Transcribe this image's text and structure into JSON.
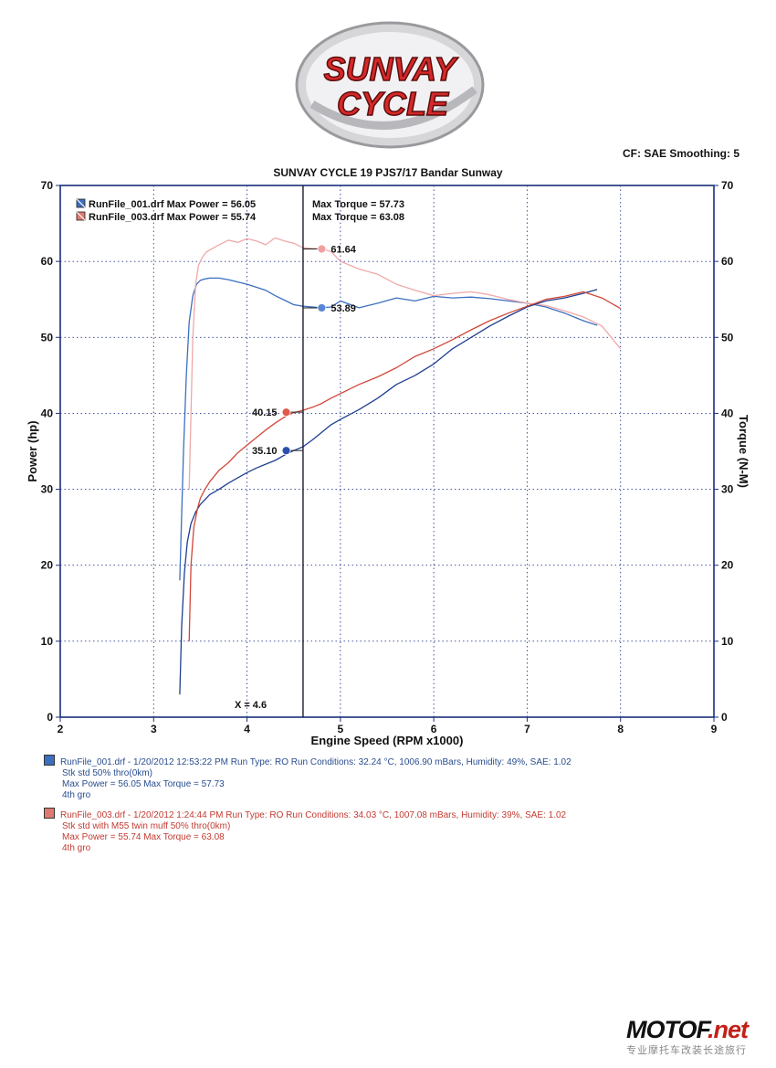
{
  "header": {
    "logo_line1": "SUNVAY",
    "logo_line2": "CYCLE",
    "cf_text": "CF: SAE  Smoothing: 5",
    "title": "SUNVAY CYCLE 19 PJS7/17 Bandar Sunway"
  },
  "legend": {
    "row1_left": "RunFile_001.drf Max Power = 56.05",
    "row1_right": "Max Torque = 57.73",
    "row2_left": "RunFile_003.drf Max Power = 55.74",
    "row2_right": "Max Torque = 63.08"
  },
  "cursor": {
    "label": "X = 4.6",
    "x": 4.6
  },
  "markers": [
    {
      "label": "61.64",
      "x": 4.8,
      "y": 61.64,
      "color": "#f0a0a0"
    },
    {
      "label": "53.89",
      "x": 4.8,
      "y": 53.89,
      "color": "#5a86d6"
    },
    {
      "label": "40.15",
      "x": 4.42,
      "y": 40.15,
      "color": "#e05a4a"
    },
    {
      "label": "35.10",
      "x": 4.42,
      "y": 35.1,
      "color": "#2a4fae"
    }
  ],
  "run_info": [
    {
      "line1": "RunFile_001.drf - 1/20/2012 12:53:22 PM  Run Type: RO  Run Conditions: 32.24 °C, 1006.90 mBars,  Humidity:  49%, SAE: 1.02",
      "line2": "Stk std 50% thro(0km)",
      "line3": "Max Power = 56.05  Max Torque = 57.73",
      "line4": "4th gro"
    },
    {
      "line1": "RunFile_003.drf - 1/20/2012 1:24:44 PM  Run Type: RO  Run Conditions: 34.03 °C, 1007.08 mBars,  Humidity:  39%, SAE: 1.02",
      "line2": "Stk std with M55 twin muff 50% thro(0km)",
      "line3": "Max Power = 55.74  Max Torque = 63.08",
      "line4": "4th gro"
    }
  ],
  "watermark": {
    "brand_main": "MOTOF",
    "brand_suffix": ".net",
    "tagline": "专业摩托车改装长途旅行"
  },
  "chart_data": {
    "type": "line",
    "xlabel": "Engine Speed (RPM x1000)",
    "ylabel": "Power (hp)",
    "y2label": "Torque (N-M)",
    "xlim": [
      2,
      9
    ],
    "ylim": [
      0,
      70
    ],
    "y2lim": [
      0,
      70
    ],
    "x_ticks": [
      2,
      3,
      4,
      5,
      6,
      7,
      8,
      9
    ],
    "y_ticks": [
      0,
      10,
      20,
      30,
      40,
      50,
      60,
      70
    ],
    "grid": true,
    "series": [
      {
        "name": "RunFile_001.drf",
        "quantity": "Power",
        "color": "#3c6fc0",
        "x": [
          3.28,
          3.32,
          3.35,
          3.38,
          3.42,
          3.46,
          3.5,
          3.55,
          3.6,
          3.7,
          3.8,
          3.9,
          4.0,
          4.1,
          4.2,
          4.3,
          4.4,
          4.5,
          4.6,
          4.7,
          4.8,
          4.9,
          5.0,
          5.2,
          5.4,
          5.6,
          5.8,
          6.0,
          6.2,
          6.4,
          6.6,
          6.8,
          7.0,
          7.2,
          7.4,
          7.6,
          7.75
        ],
        "y": [
          18,
          35,
          45,
          52,
          55.5,
          57,
          57.5,
          57.7,
          57.8,
          57.8,
          57.6,
          57.3,
          57,
          56.6,
          56.2,
          55.5,
          54.9,
          54.3,
          54.1,
          54,
          53.9,
          54,
          54.8,
          53.9,
          54.5,
          55.2,
          54.8,
          55.4,
          55.2,
          55.3,
          55.1,
          54.8,
          54.5,
          54,
          53.2,
          52.2,
          51.6
        ]
      },
      {
        "name": "RunFile_003.drf",
        "quantity": "Power",
        "color": "#f0a8a8",
        "x": [
          3.38,
          3.42,
          3.45,
          3.48,
          3.52,
          3.56,
          3.6,
          3.7,
          3.8,
          3.9,
          4.0,
          4.1,
          4.2,
          4.3,
          4.4,
          4.5,
          4.6,
          4.7,
          4.8,
          4.9,
          5.0,
          5.2,
          5.4,
          5.6,
          5.8,
          6.0,
          6.2,
          6.4,
          6.6,
          6.8,
          7.0,
          7.2,
          7.4,
          7.6,
          7.8,
          8.0
        ],
        "y": [
          30,
          50,
          57,
          59.5,
          60.5,
          61.2,
          61.5,
          62.2,
          62.8,
          62.5,
          63,
          62.7,
          62.2,
          63.1,
          62.7,
          62.4,
          61.8,
          61.7,
          61.6,
          61.3,
          60,
          59,
          58.3,
          57,
          56.2,
          55.5,
          55.8,
          56,
          55.6,
          55,
          54.5,
          54.2,
          53.5,
          52.7,
          51.5,
          48.5
        ]
      },
      {
        "name": "RunFile_001.drf",
        "quantity": "Torque",
        "color": "#1f3f8f",
        "x": [
          3.28,
          3.3,
          3.33,
          3.36,
          3.4,
          3.45,
          3.5,
          3.6,
          3.7,
          3.8,
          3.9,
          4.0,
          4.1,
          4.2,
          4.3,
          4.4,
          4.5,
          4.6,
          4.7,
          4.8,
          4.9,
          5.0,
          5.2,
          5.4,
          5.6,
          5.8,
          6.0,
          6.2,
          6.4,
          6.6,
          6.8,
          7.0,
          7.2,
          7.4,
          7.6,
          7.75
        ],
        "y": [
          3,
          12,
          19,
          23,
          25.5,
          27,
          28,
          29.3,
          30,
          30.8,
          31.5,
          32.2,
          32.8,
          33.3,
          33.8,
          34.5,
          35.1,
          35.6,
          36.5,
          37.5,
          38.5,
          39.2,
          40.5,
          42,
          43.8,
          45,
          46.5,
          48.5,
          50,
          51.5,
          52.8,
          54,
          54.8,
          55.2,
          55.8,
          56.3
        ]
      },
      {
        "name": "RunFile_003.drf",
        "quantity": "Torque",
        "color": "#d2473a",
        "x": [
          3.38,
          3.4,
          3.43,
          3.47,
          3.5,
          3.55,
          3.6,
          3.7,
          3.8,
          3.9,
          4.0,
          4.1,
          4.2,
          4.3,
          4.4,
          4.5,
          4.6,
          4.7,
          4.8,
          4.9,
          5.0,
          5.2,
          5.4,
          5.6,
          5.8,
          6.0,
          6.2,
          6.4,
          6.6,
          6.8,
          7.0,
          7.2,
          7.4,
          7.6,
          7.8,
          8.0
        ],
        "y": [
          10,
          20,
          25,
          27.5,
          28.8,
          30,
          31,
          32.5,
          33.5,
          34.8,
          35.8,
          36.8,
          37.8,
          38.7,
          39.5,
          40.1,
          40.4,
          40.8,
          41.3,
          42,
          42.6,
          43.8,
          44.8,
          46,
          47.5,
          48.5,
          49.7,
          51,
          52.2,
          53.2,
          54.1,
          55,
          55.4,
          56,
          55.2,
          53.8
        ]
      }
    ]
  }
}
